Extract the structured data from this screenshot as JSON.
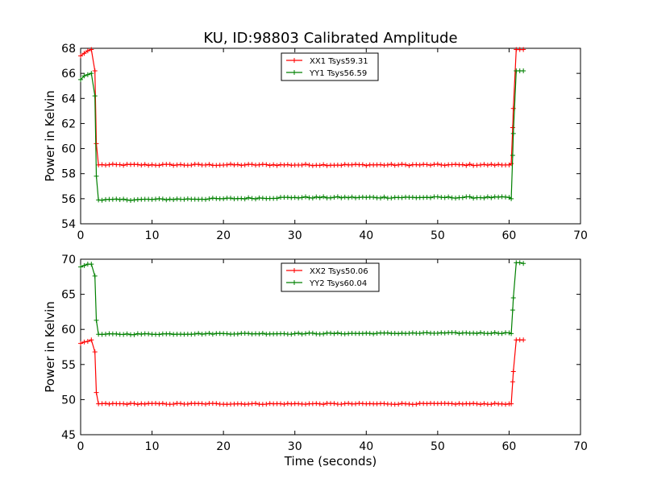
{
  "figure": {
    "title": "KU, ID:98803 Calibrated Amplitude"
  },
  "chart_data": [
    {
      "type": "line",
      "ylabel": "Power in Kelvin",
      "xlabel": "",
      "xlim": [
        0,
        70
      ],
      "ylim": [
        54,
        68
      ],
      "xticks": [
        0,
        10,
        20,
        30,
        40,
        50,
        60,
        70
      ],
      "yticks": [
        54,
        56,
        58,
        60,
        62,
        64,
        66,
        68
      ],
      "legend_position": "top-center",
      "series": [
        {
          "name": "XX1 Tsys59.31",
          "color": "#ff0000",
          "marker": "plus",
          "points": [
            [
              0,
              67.4
            ],
            [
              0.5,
              67.6
            ],
            [
              1.0,
              67.8
            ],
            [
              1.5,
              67.9
            ],
            [
              2.0,
              66.2
            ],
            [
              2.2,
              60.4
            ],
            [
              2.5,
              58.7
            ],
            [
              60.0,
              58.7
            ],
            [
              60.3,
              58.8
            ],
            [
              60.6,
              63.2
            ],
            [
              61.0,
              67.9
            ],
            [
              61.5,
              67.9
            ],
            [
              62.0,
              67.9
            ]
          ],
          "noise": 0.06
        },
        {
          "name": "YY1 Tsys56.59",
          "color": "#008000",
          "marker": "plus",
          "points": [
            [
              0,
              65.5
            ],
            [
              0.5,
              65.8
            ],
            [
              1.0,
              65.9
            ],
            [
              1.5,
              66.0
            ],
            [
              2.0,
              64.2
            ],
            [
              2.2,
              57.8
            ],
            [
              2.5,
              55.9
            ],
            [
              20.0,
              56.0
            ],
            [
              30.0,
              56.1
            ],
            [
              60.0,
              56.1
            ],
            [
              60.3,
              56.0
            ],
            [
              60.6,
              61.2
            ],
            [
              61.0,
              66.2
            ],
            [
              61.5,
              66.2
            ],
            [
              62.0,
              66.2
            ]
          ],
          "noise": 0.06
        }
      ]
    },
    {
      "type": "line",
      "ylabel": "Power in Kelvin",
      "xlabel": "Time (seconds)",
      "xlim": [
        0,
        70
      ],
      "ylim": [
        45,
        70
      ],
      "xticks": [
        0,
        10,
        20,
        30,
        40,
        50,
        60,
        70
      ],
      "yticks": [
        45,
        50,
        55,
        60,
        65,
        70
      ],
      "legend_position": "top-center",
      "series": [
        {
          "name": "XX2 Tsys50.06",
          "color": "#ff0000",
          "marker": "plus",
          "points": [
            [
              0,
              58.0
            ],
            [
              0.5,
              58.2
            ],
            [
              1.0,
              58.3
            ],
            [
              1.5,
              58.5
            ],
            [
              2.0,
              56.8
            ],
            [
              2.2,
              51.0
            ],
            [
              2.5,
              49.4
            ],
            [
              60.0,
              49.4
            ],
            [
              60.3,
              49.4
            ],
            [
              60.6,
              54.0
            ],
            [
              61.0,
              58.5
            ],
            [
              61.5,
              58.5
            ],
            [
              62.0,
              58.5
            ]
          ],
          "noise": 0.08
        },
        {
          "name": "YY2 Tsys60.04",
          "color": "#008000",
          "marker": "plus",
          "points": [
            [
              0,
              68.9
            ],
            [
              0.5,
              69.1
            ],
            [
              1.0,
              69.3
            ],
            [
              1.5,
              69.3
            ],
            [
              2.0,
              67.6
            ],
            [
              2.2,
              61.3
            ],
            [
              2.5,
              59.3
            ],
            [
              20.0,
              59.4
            ],
            [
              30.0,
              59.4
            ],
            [
              60.0,
              59.5
            ],
            [
              60.3,
              59.4
            ],
            [
              60.6,
              64.5
            ],
            [
              61.0,
              69.5
            ],
            [
              61.5,
              69.5
            ],
            [
              62.0,
              69.4
            ]
          ],
          "noise": 0.08
        }
      ]
    }
  ]
}
